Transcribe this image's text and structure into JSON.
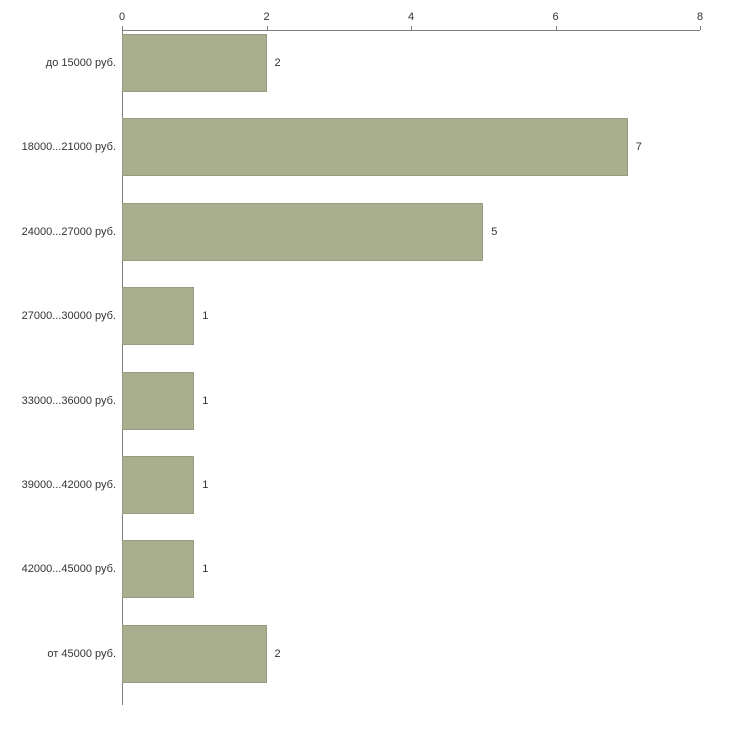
{
  "chart_data": {
    "type": "bar",
    "orientation": "horizontal",
    "title": "",
    "xlabel": "",
    "ylabel": "",
    "categories": [
      "до 15000 руб.",
      "18000...21000 руб.",
      "24000...27000 руб.",
      "27000...30000 руб.",
      "33000...36000 руб.",
      "39000...42000 руб.",
      "42000...45000 руб.",
      "от 45000 руб."
    ],
    "values": [
      2,
      7,
      5,
      1,
      1,
      1,
      1,
      2
    ],
    "value_labels": [
      "2",
      "7",
      "5",
      "1",
      "1",
      "1",
      "1",
      "2"
    ],
    "xlim": [
      0,
      8
    ],
    "x_ticks": [
      "0",
      "2",
      "4",
      "6",
      "8"
    ],
    "x_tick_values": [
      0,
      2,
      4,
      6,
      8
    ],
    "grid": false,
    "legend": false,
    "colors": {
      "bar_fill": "#a9ae8e",
      "bar_border": "#979c7e",
      "axis": "#7f7f7f",
      "text": "#333333",
      "background": "#ffffff"
    }
  }
}
